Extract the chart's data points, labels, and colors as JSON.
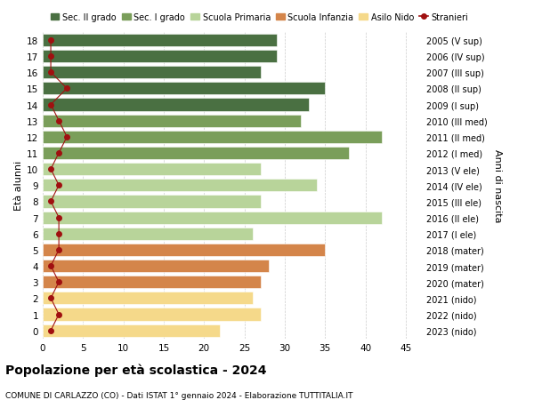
{
  "ages": [
    18,
    17,
    16,
    15,
    14,
    13,
    12,
    11,
    10,
    9,
    8,
    7,
    6,
    5,
    4,
    3,
    2,
    1,
    0
  ],
  "years": [
    "2005 (V sup)",
    "2006 (IV sup)",
    "2007 (III sup)",
    "2008 (II sup)",
    "2009 (I sup)",
    "2010 (III med)",
    "2011 (II med)",
    "2012 (I med)",
    "2013 (V ele)",
    "2014 (IV ele)",
    "2015 (III ele)",
    "2016 (II ele)",
    "2017 (I ele)",
    "2018 (mater)",
    "2019 (mater)",
    "2020 (mater)",
    "2021 (nido)",
    "2022 (nido)",
    "2023 (nido)"
  ],
  "bar_values": [
    29,
    29,
    27,
    35,
    33,
    32,
    42,
    38,
    27,
    34,
    27,
    42,
    26,
    35,
    28,
    27,
    26,
    27,
    22
  ],
  "stranieri": [
    1,
    1,
    1,
    3,
    1,
    2,
    3,
    2,
    1,
    2,
    1,
    2,
    2,
    2,
    1,
    2,
    1,
    2,
    1
  ],
  "bar_colors": [
    "#4a7042",
    "#4a7042",
    "#4a7042",
    "#4a7042",
    "#4a7042",
    "#7a9e5a",
    "#7a9e5a",
    "#7a9e5a",
    "#b8d49a",
    "#b8d49a",
    "#b8d49a",
    "#b8d49a",
    "#b8d49a",
    "#d4854a",
    "#d4854a",
    "#d4854a",
    "#f5d98a",
    "#f5d98a",
    "#f5d98a"
  ],
  "legend_labels": [
    "Sec. II grado",
    "Sec. I grado",
    "Scuola Primaria",
    "Scuola Infanzia",
    "Asilo Nido",
    "Stranieri"
  ],
  "legend_colors": [
    "#4a7042",
    "#7a9e5a",
    "#b8d49a",
    "#d4854a",
    "#f5d98a",
    "#a01010"
  ],
  "stranieri_color": "#a01010",
  "title": "Popolazione per età scolastica - 2024",
  "subtitle": "COMUNE DI CARLAZZO (CO) - Dati ISTAT 1° gennaio 2024 - Elaborazione TUTTITALIA.IT",
  "ylabel": "Età alunni",
  "right_ylabel": "Anni di nascita",
  "xlim": [
    0,
    47
  ],
  "xticks": [
    0,
    5,
    10,
    15,
    20,
    25,
    30,
    35,
    40,
    45
  ],
  "background_color": "#ffffff",
  "grid_color": "#cccccc"
}
